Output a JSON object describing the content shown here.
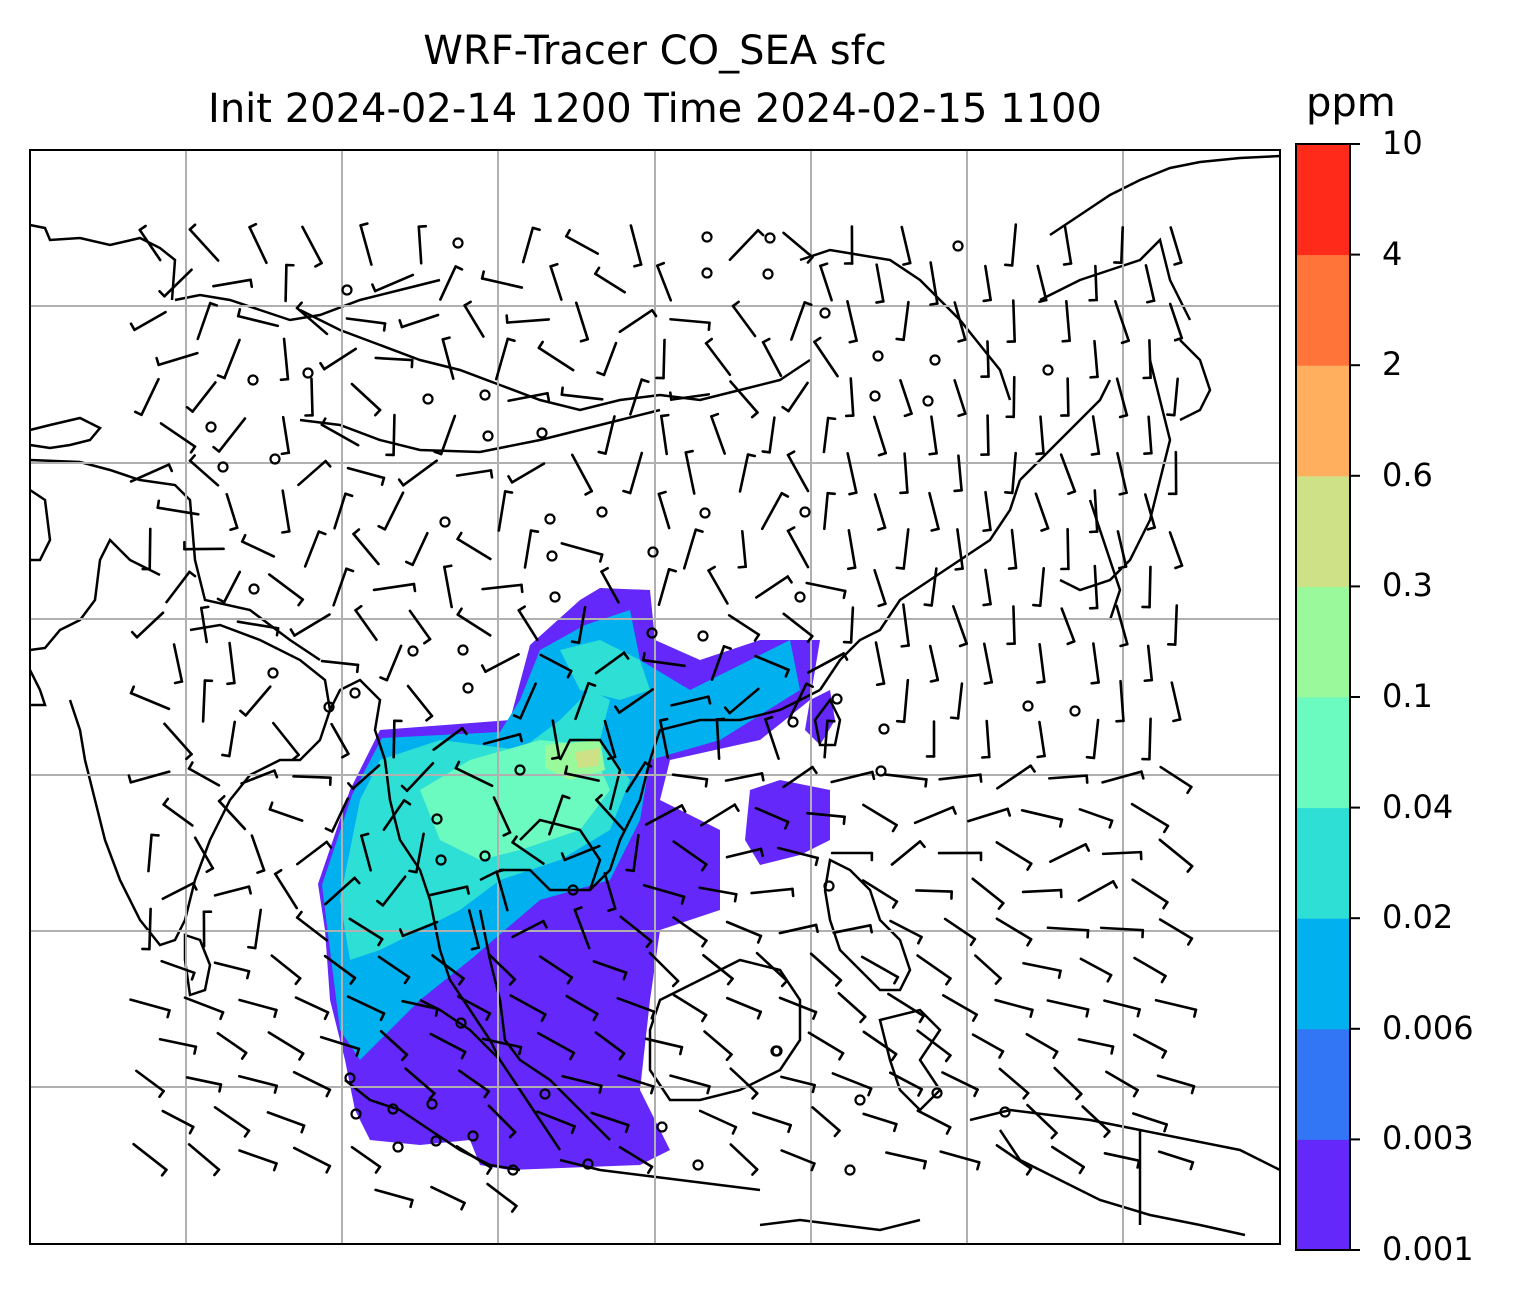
{
  "title": {
    "line1": "WRF-Tracer CO_SEA sfc",
    "line2": "Init 2024-02-14 1200 Time 2024-02-15 1100"
  },
  "colorbar": {
    "unit": "ppm",
    "levels": [
      "0.001",
      "0.003",
      "0.006",
      "0.02",
      "0.04",
      "0.1",
      "0.3",
      "0.6",
      "2",
      "4",
      "10"
    ],
    "colors": [
      "#6428FA",
      "#3275F5",
      "#00B0EF",
      "#2EDFD6",
      "#6BFAC0",
      "#9AF99A",
      "#CFE186",
      "#FFAF5E",
      "#FF7439",
      "#FF2A1A"
    ]
  },
  "map": {
    "features": [
      "coastlines",
      "gridlines",
      "wind-barbs",
      "co-tracer-plume"
    ],
    "gridline_color": "#b0b0b0"
  }
}
